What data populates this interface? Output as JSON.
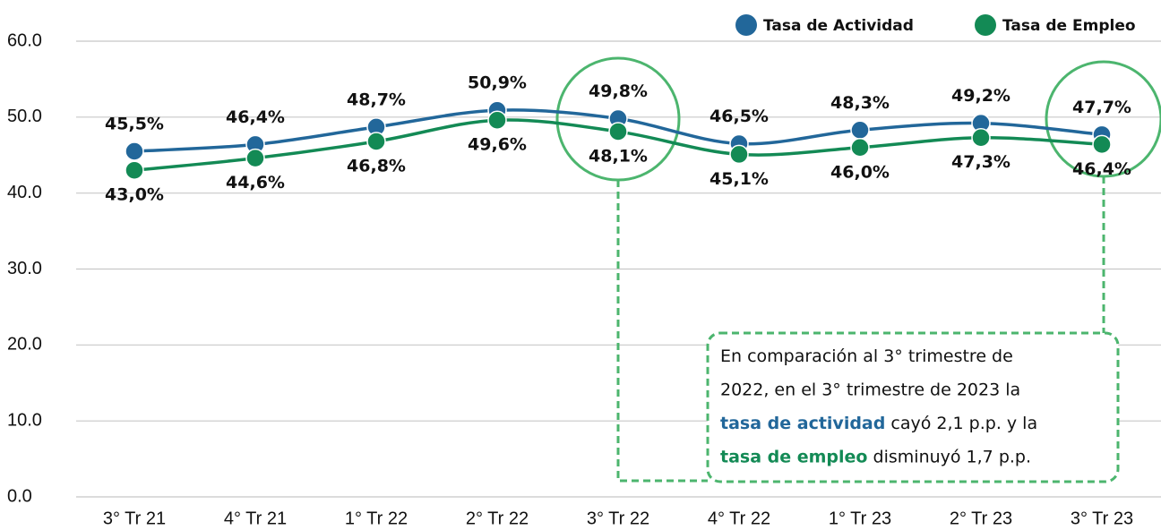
{
  "chart_data": {
    "type": "line",
    "categories": [
      "3° Tr 21",
      "4° Tr 21",
      "1° Tr 22",
      "2° Tr 22",
      "3° Tr 22",
      "4° Tr 22",
      "1° Tr 23",
      "2° Tr 23",
      "3° Tr 23"
    ],
    "series": [
      {
        "name": "Tasa de Actividad",
        "color": "#22679a",
        "values": [
          45.5,
          46.4,
          48.7,
          50.9,
          49.8,
          46.5,
          48.3,
          49.2,
          47.7
        ],
        "value_labels": [
          "45,5%",
          "46,4%",
          "48,7%",
          "50,9%",
          "49,8%",
          "46,5%",
          "48,3%",
          "49,2%",
          "47,7%"
        ]
      },
      {
        "name": "Tasa de Empleo",
        "color": "#138a55",
        "values": [
          43.0,
          44.6,
          46.8,
          49.6,
          48.1,
          45.1,
          46.0,
          47.3,
          46.4
        ],
        "value_labels": [
          "43,0%",
          "44,6%",
          "46,8%",
          "49,6%",
          "48,1%",
          "45,1%",
          "46,0%",
          "47,3%",
          "46,4%"
        ]
      }
    ],
    "ylim": [
      0,
      60
    ],
    "yticks": [
      {
        "value": 0,
        "label": "0.0"
      },
      {
        "value": 10,
        "label": "10.0"
      },
      {
        "value": 20,
        "label": "20.0"
      },
      {
        "value": 30,
        "label": "30.0"
      },
      {
        "value": 40,
        "label": "40.0"
      },
      {
        "value": 50,
        "label": "50.0"
      },
      {
        "value": 60,
        "label": "60.0"
      }
    ],
    "grid": true,
    "legend": "top-right",
    "annotation": [
      [
        {
          "text": "En comparación al 3° trimestre de"
        }
      ],
      [
        {
          "text": "2022, en el 3° trimestre de 2023 la"
        }
      ],
      [
        {
          "text": "tasa de actividad",
          "color": "#22679a",
          "bold": true
        },
        {
          "text": " cayó 2,1 p.p. y la"
        }
      ],
      [
        {
          "text": "tasa de empleo",
          "color": "#138a55",
          "bold": true
        },
        {
          "text": " disminuyó 1,7 p.p."
        }
      ]
    ]
  }
}
